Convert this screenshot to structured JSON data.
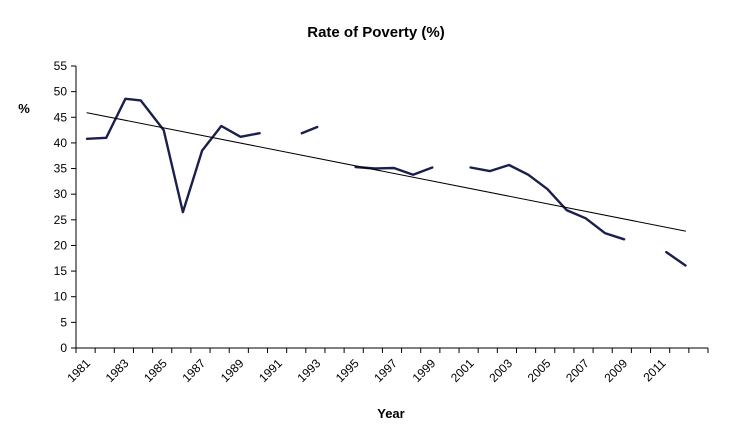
{
  "chart_data": {
    "type": "line",
    "title": "Rate of Poverty (%)",
    "xlabel": "Year",
    "ylabel": "%",
    "ylim": [
      0,
      55
    ],
    "yticks": [
      0,
      5,
      10,
      15,
      20,
      25,
      30,
      35,
      40,
      45,
      50,
      55
    ],
    "xlim": [
      1981,
      2012.8
    ],
    "xticks": [
      "1981",
      "1983",
      "1985",
      "1987",
      "1989",
      "1991",
      "1993",
      "1995",
      "1997",
      "1999",
      "2001",
      "2003",
      "2005",
      "2007",
      "2009",
      "2011"
    ],
    "grid": false,
    "legend": "none",
    "series": [
      {
        "color": "#1a1f4d",
        "segments": [
          [
            [
              1981.0,
              40.8
            ],
            [
              1982.0,
              41.0
            ],
            [
              1983.0,
              48.6
            ],
            [
              1983.8,
              48.3
            ],
            [
              1985.0,
              42.5
            ],
            [
              1986.0,
              26.5
            ],
            [
              1987.0,
              38.5
            ],
            [
              1988.0,
              43.3
            ],
            [
              1989.0,
              41.2
            ],
            [
              1990.0,
              41.9
            ]
          ],
          [
            [
              1992.2,
              41.9
            ],
            [
              1993.0,
              43.1
            ]
          ],
          [
            [
              1995.0,
              35.3
            ],
            [
              1996.0,
              35.0
            ],
            [
              1997.0,
              35.1
            ],
            [
              1998.0,
              33.8
            ],
            [
              1999.0,
              35.2
            ]
          ],
          [
            [
              2001.0,
              35.2
            ],
            [
              2002.0,
              34.5
            ],
            [
              2003.0,
              35.7
            ],
            [
              2004.0,
              33.8
            ],
            [
              2005.0,
              31.0
            ],
            [
              2006.0,
              26.9
            ],
            [
              2007.0,
              25.3
            ],
            [
              2008.0,
              22.4
            ],
            [
              2009.0,
              21.2
            ]
          ],
          [
            [
              2011.2,
              18.7
            ],
            [
              2012.2,
              16.1
            ]
          ]
        ]
      },
      {
        "color": "#000000",
        "segments": [
          [
            [
              1981.0,
              45.9
            ],
            [
              2012.2,
              22.8
            ]
          ]
        ]
      }
    ]
  }
}
